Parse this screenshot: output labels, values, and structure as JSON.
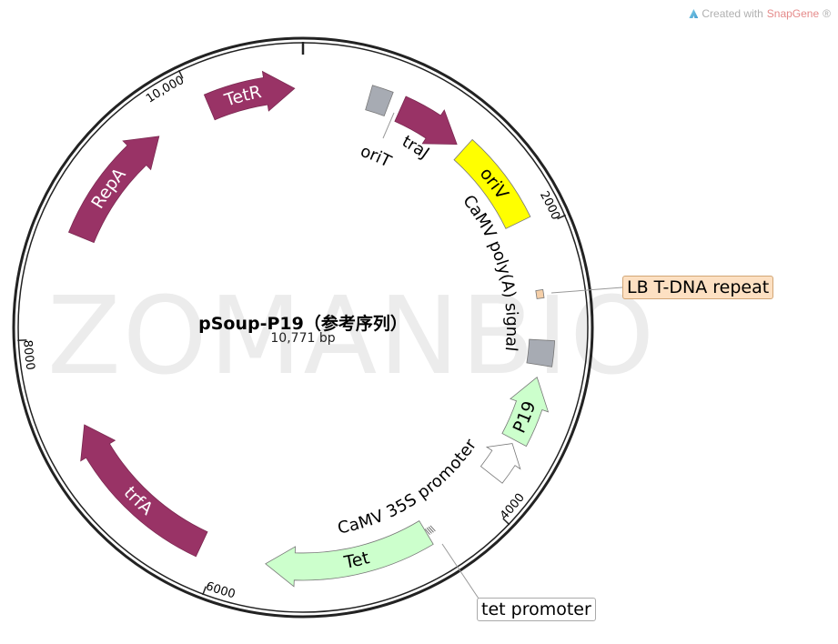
{
  "credit": {
    "prefix": "Created with ",
    "brand": "SnapGene",
    "suffix": "®"
  },
  "watermark": "ZOMANBIO",
  "plasmid": {
    "name": "pSoup-P19（参考序列）",
    "length_label": "10,771 bp",
    "length_bp": 10771
  },
  "ticks": [
    {
      "bp": 0,
      "label": ""
    },
    {
      "bp": 2000,
      "label": "2000"
    },
    {
      "bp": 4000,
      "label": "4000"
    },
    {
      "bp": 6000,
      "label": "6000"
    },
    {
      "bp": 8000,
      "label": "8000"
    },
    {
      "bp": 10000,
      "label": "10,000"
    }
  ],
  "colors": {
    "maroon": "#993366",
    "green": "#ccffcc",
    "yellow": "#ffff00",
    "gray": "#a7abb3",
    "white": "#ffffff",
    "peach": "#f5cfa8",
    "ring": "#222222"
  },
  "features": [
    {
      "name": "TetR",
      "label": "TetR",
      "start": 10083,
      "end": 10711,
      "shape": "arrow",
      "direction": "forward",
      "color": "maroon",
      "label_pos": "inside"
    },
    {
      "name": "oriT",
      "label": "oriT",
      "start": 479,
      "end": 628,
      "shape": "box",
      "color": "gray",
      "label_pos": "leader"
    },
    {
      "name": "traJ",
      "label": "traJ",
      "start": 718,
      "end": 1197,
      "shape": "arrow",
      "direction": "forward",
      "color": "maroon",
      "label_pos": "below"
    },
    {
      "name": "oriV",
      "label": "oriV",
      "start": 1257,
      "end": 1915,
      "shape": "box",
      "color": "yellow",
      "label_pos": "inside"
    },
    {
      "name": "LB T-DNA repeat",
      "label": "LB T-DNA repeat",
      "start": 2424,
      "end": 2483,
      "shape": "box",
      "color": "peach",
      "label_pos": "callout"
    },
    {
      "name": "CaMV poly(A) signal",
      "label": "CaMV poly(A) signal",
      "start": 2783,
      "end": 2962,
      "shape": "box",
      "color": "gray",
      "label_pos": "below"
    },
    {
      "name": "P19",
      "label": "P19",
      "start": 3052,
      "end": 3531,
      "shape": "arrow",
      "direction": "reverse",
      "color": "green",
      "label_pos": "inside"
    },
    {
      "name": "CaMV 35S promoter",
      "label": "CaMV 35S promoter",
      "start": 3561,
      "end": 3830,
      "shape": "arrow",
      "direction": "reverse",
      "color": "white",
      "label_pos": "below"
    },
    {
      "name": "tet promoter",
      "label": "tet promoter",
      "start": 4398,
      "end": 4458,
      "shape": "hatch",
      "color": "white",
      "label_pos": "callout"
    },
    {
      "name": "Tet",
      "label": "Tet",
      "start": 4458,
      "end": 5655,
      "shape": "arrow",
      "direction": "forward",
      "color": "green",
      "label_pos": "inside"
    },
    {
      "name": "trfA",
      "label": "trfA",
      "start": 6135,
      "end": 7360,
      "shape": "arrow",
      "direction": "forward",
      "color": "maroon",
      "label_pos": "inside"
    },
    {
      "name": "RepA",
      "label": "RepA",
      "start": 8740,
      "end": 9665,
      "shape": "arrow",
      "direction": "forward",
      "color": "maroon",
      "label_pos": "inside"
    }
  ]
}
